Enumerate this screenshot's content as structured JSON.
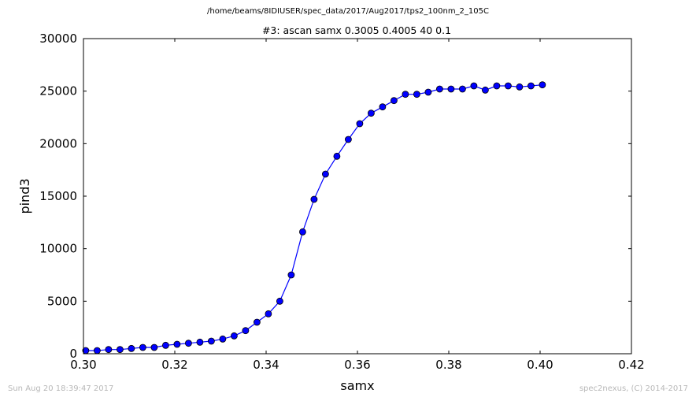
{
  "header": {
    "supertitle": "/home/beams/8IDIUSER/spec_data/2017/Aug2017/tps2_100nm_2_105C"
  },
  "footer": {
    "timestamp": "Sun Aug 20 18:39:47 2017",
    "credit": "spec2nexus, (C) 2014-2017"
  },
  "colors": {
    "series": "#0000ff",
    "axes": "#000000",
    "footer_text": "#b8b8b8"
  },
  "chart_data": {
    "type": "line",
    "title": "#3: ascan  samx 0.3005 0.4005  40 0.1",
    "xlabel": "samx",
    "ylabel": "pind3",
    "xlim": [
      0.3,
      0.42
    ],
    "ylim": [
      0,
      30000
    ],
    "xticks": [
      "0.30",
      "0.32",
      "0.34",
      "0.36",
      "0.38",
      "0.40",
      "0.42"
    ],
    "yticks": [
      "0",
      "5000",
      "10000",
      "15000",
      "20000",
      "25000",
      "30000"
    ],
    "xtick_values": [
      0.3,
      0.32,
      0.34,
      0.36,
      0.38,
      0.4,
      0.42
    ],
    "ytick_values": [
      0,
      5000,
      10000,
      15000,
      20000,
      25000,
      30000
    ],
    "grid": false,
    "marker": "circle",
    "series": [
      {
        "x": [
          0.3005,
          0.303,
          0.3055,
          0.308,
          0.3105,
          0.313,
          0.3155,
          0.318,
          0.3205,
          0.323,
          0.3255,
          0.328,
          0.3305,
          0.333,
          0.3355,
          0.338,
          0.3405,
          0.343,
          0.3455,
          0.348,
          0.3505,
          0.353,
          0.3555,
          0.358,
          0.3605,
          0.363,
          0.3655,
          0.368,
          0.3705,
          0.373,
          0.3755,
          0.378,
          0.3805,
          0.383,
          0.3855,
          0.388,
          0.3905,
          0.393,
          0.3955,
          0.398,
          0.4005
        ],
        "values": [
          300,
          300,
          400,
          400,
          500,
          600,
          600,
          800,
          900,
          1000,
          1100,
          1200,
          1400,
          1700,
          2200,
          3000,
          3800,
          5000,
          7500,
          11600,
          14700,
          17100,
          18800,
          20400,
          21900,
          22900,
          23500,
          24100,
          24700,
          24700,
          24900,
          25200,
          25200,
          25200,
          25500,
          25100,
          25500,
          25500,
          25400,
          25500,
          25600
        ]
      }
    ]
  }
}
